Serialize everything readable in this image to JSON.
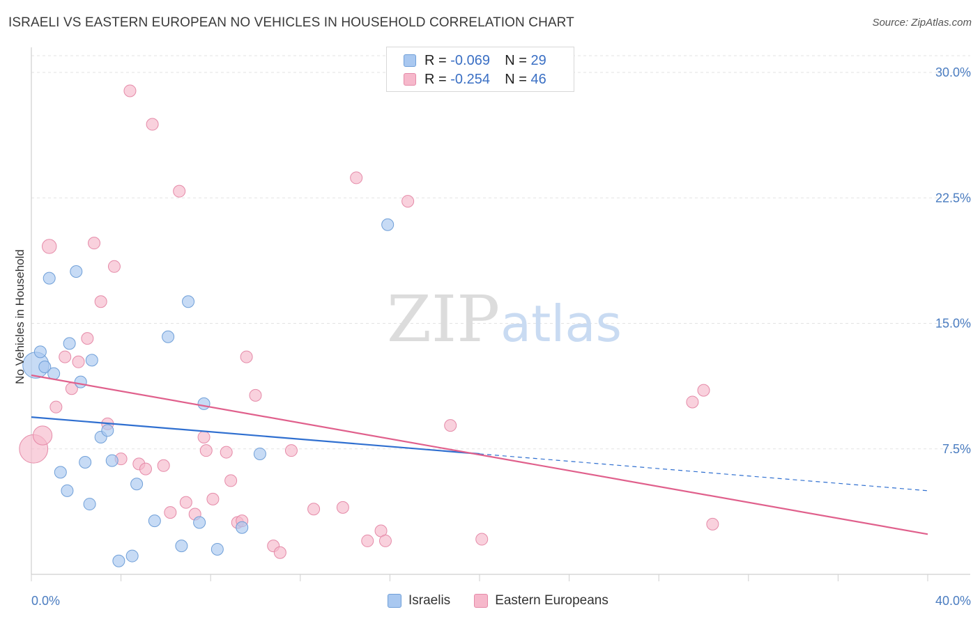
{
  "header": {
    "title": "ISRAELI VS EASTERN EUROPEAN NO VEHICLES IN HOUSEHOLD CORRELATION CHART",
    "source": "Source: ZipAtlas.com"
  },
  "watermark": {
    "zip": "ZIP",
    "atlas": "atlas"
  },
  "legend": {
    "rows": [
      {
        "r_label": "R =",
        "r_value": "-0.069",
        "n_label": "N =",
        "n_value": "29",
        "color": "#a9c8f0"
      },
      {
        "r_label": "R =",
        "r_value": "-0.254",
        "n_label": "N =",
        "n_value": "46",
        "color": "#f6b8cb"
      }
    ]
  },
  "bottom_legend": {
    "series1": "Israelis",
    "series2": "Eastern Europeans"
  },
  "colors": {
    "israelis_fill": "#a9c8f0",
    "israelis_stroke": "#6f9fd8",
    "israelis_line": "#2f6fd0",
    "eastern_fill": "#f6b8cb",
    "eastern_stroke": "#e58aa8",
    "eastern_line": "#e0608c",
    "tick_text": "#4a7cc0",
    "grid": "#e3e3e3"
  },
  "chart_data": {
    "type": "scatter",
    "title": "ISRAELI VS EASTERN EUROPEAN NO VEHICLES IN HOUSEHOLD CORRELATION CHART",
    "xlabel": "",
    "ylabel": "No Vehicles in Household",
    "xlim": [
      0,
      40
    ],
    "ylim": [
      0,
      31
    ],
    "x_tick_labels": [
      "0.0%",
      "40.0%"
    ],
    "y_ticks": [
      7.5,
      15.0,
      22.5,
      30.0
    ],
    "y_tick_labels": [
      "7.5%",
      "15.0%",
      "22.5%",
      "30.0%"
    ],
    "grid": true,
    "legend_position": "top-center",
    "series": [
      {
        "name": "Israelis",
        "R": -0.069,
        "N": 29,
        "points": [
          [
            0.2,
            12.5,
            2.2
          ],
          [
            0.4,
            13.3,
            1
          ],
          [
            0.6,
            12.4,
            1
          ],
          [
            0.8,
            17.7,
            1
          ],
          [
            1.0,
            12.0,
            1
          ],
          [
            1.3,
            6.1,
            1
          ],
          [
            1.6,
            5.0,
            1
          ],
          [
            1.7,
            13.8,
            1
          ],
          [
            2.0,
            18.1,
            1
          ],
          [
            2.2,
            11.5,
            1
          ],
          [
            2.4,
            6.7,
            1
          ],
          [
            2.6,
            4.2,
            1
          ],
          [
            2.7,
            12.8,
            1
          ],
          [
            3.1,
            8.2,
            1
          ],
          [
            3.4,
            8.6,
            1
          ],
          [
            3.6,
            6.8,
            1
          ],
          [
            3.9,
            0.8,
            1
          ],
          [
            4.5,
            1.1,
            1
          ],
          [
            4.7,
            5.4,
            1
          ],
          [
            5.5,
            3.2,
            1
          ],
          [
            6.1,
            14.2,
            1
          ],
          [
            6.7,
            1.7,
            1
          ],
          [
            7.0,
            16.3,
            1
          ],
          [
            7.5,
            3.1,
            1
          ],
          [
            7.7,
            10.2,
            1
          ],
          [
            8.3,
            1.5,
            1
          ],
          [
            9.4,
            2.8,
            1
          ],
          [
            10.2,
            7.2,
            1
          ],
          [
            15.9,
            20.9,
            1
          ]
        ],
        "trend": {
          "x": [
            0,
            40
          ],
          "y": [
            9.4,
            5.0
          ],
          "solid_until": 20
        }
      },
      {
        "name": "Eastern Europeans",
        "R": -0.254,
        "N": 46,
        "points": [
          [
            0.1,
            7.5,
            2.4
          ],
          [
            0.5,
            8.3,
            1.6
          ],
          [
            0.8,
            19.6,
            1.2
          ],
          [
            1.1,
            10.0,
            1
          ],
          [
            1.5,
            13.0,
            1
          ],
          [
            1.8,
            11.1,
            1
          ],
          [
            2.1,
            12.7,
            1
          ],
          [
            2.5,
            14.1,
            1
          ],
          [
            2.8,
            19.8,
            1
          ],
          [
            3.1,
            16.3,
            1
          ],
          [
            3.4,
            9.0,
            1
          ],
          [
            3.7,
            18.4,
            1
          ],
          [
            4.0,
            6.9,
            1
          ],
          [
            4.4,
            28.9,
            1
          ],
          [
            4.8,
            6.6,
            1
          ],
          [
            5.1,
            6.3,
            1
          ],
          [
            5.4,
            26.9,
            1
          ],
          [
            5.9,
            6.5,
            1
          ],
          [
            6.2,
            3.7,
            1
          ],
          [
            6.6,
            22.9,
            1
          ],
          [
            6.9,
            4.3,
            1
          ],
          [
            7.3,
            3.6,
            1
          ],
          [
            7.7,
            8.2,
            1
          ],
          [
            7.8,
            7.4,
            1
          ],
          [
            8.1,
            4.5,
            1
          ],
          [
            8.7,
            7.3,
            1
          ],
          [
            8.9,
            5.6,
            1
          ],
          [
            9.2,
            3.1,
            1
          ],
          [
            9.4,
            3.2,
            1
          ],
          [
            9.6,
            13.0,
            1
          ],
          [
            10.0,
            10.7,
            1
          ],
          [
            10.8,
            1.7,
            1
          ],
          [
            11.1,
            1.3,
            1
          ],
          [
            11.6,
            7.4,
            1
          ],
          [
            12.6,
            3.9,
            1
          ],
          [
            13.9,
            4.0,
            1
          ],
          [
            14.5,
            23.7,
            1
          ],
          [
            15.0,
            2.0,
            1
          ],
          [
            15.6,
            2.6,
            1
          ],
          [
            15.8,
            2.0,
            1
          ],
          [
            16.8,
            22.3,
            1
          ],
          [
            18.7,
            8.9,
            1
          ],
          [
            20.1,
            2.1,
            1
          ],
          [
            29.5,
            10.3,
            1
          ],
          [
            30.0,
            11.0,
            1
          ],
          [
            30.4,
            3.0,
            1
          ]
        ],
        "trend": {
          "x": [
            0,
            40
          ],
          "y": [
            11.9,
            2.4
          ]
        }
      }
    ]
  }
}
